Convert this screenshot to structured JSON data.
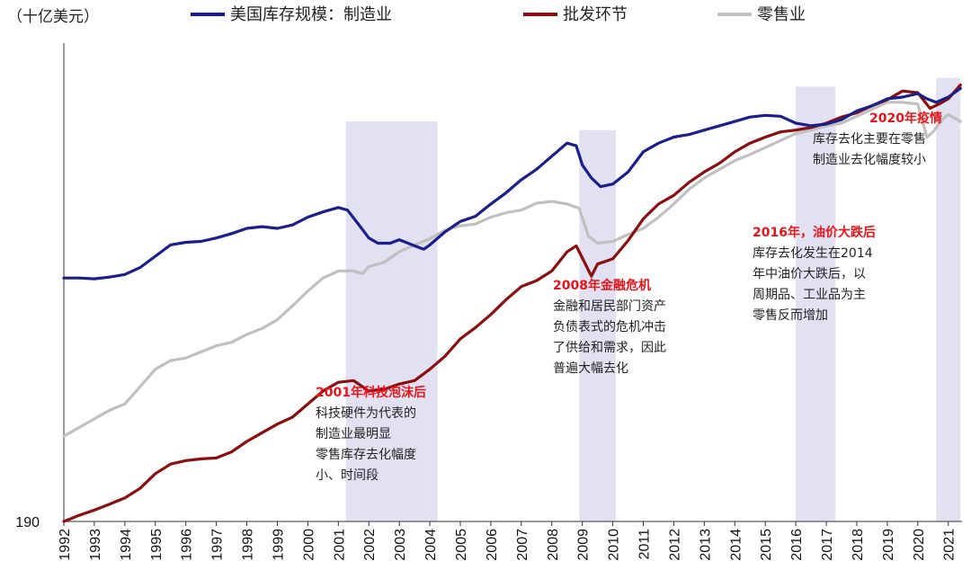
{
  "chart_data": {
    "type": "line",
    "unit_label": "（十亿美元）",
    "ylim": [
      190,
      740
    ],
    "y_ticks": [
      190
    ],
    "x_years": [
      1992,
      1993,
      1994,
      1995,
      1996,
      1997,
      1998,
      1999,
      2000,
      2001,
      2002,
      2003,
      2004,
      2005,
      2006,
      2007,
      2008,
      2009,
      2010,
      2011,
      2012,
      2013,
      2014,
      2015,
      2016,
      2017,
      2018,
      2019,
      2020,
      2021
    ],
    "x_tick_labels": [
      "1992",
      "1993",
      "1994",
      "1995",
      "1996",
      "1997",
      "1998",
      "1999",
      "2000",
      "2001",
      "2002",
      "2003",
      "2004",
      "2005",
      "2006",
      "2007",
      "2008",
      "2009",
      "2010",
      "2011",
      "2012",
      "2013",
      "2014",
      "2015",
      "2016",
      "2017",
      "2018",
      "2019",
      "2020",
      "2021"
    ],
    "series": [
      {
        "name": "美国库存规模：制造业",
        "color": "#1a1f8c",
        "points": [
          [
            1992.0,
            470
          ],
          [
            1992.5,
            470
          ],
          [
            1993.0,
            469
          ],
          [
            1993.5,
            471
          ],
          [
            1994.0,
            474
          ],
          [
            1994.5,
            482
          ],
          [
            1995.0,
            495
          ],
          [
            1995.5,
            508
          ],
          [
            1996.0,
            511
          ],
          [
            1996.5,
            512
          ],
          [
            1997.0,
            516
          ],
          [
            1997.5,
            521
          ],
          [
            1998.0,
            527
          ],
          [
            1998.5,
            529
          ],
          [
            1999.0,
            527
          ],
          [
            1999.5,
            531
          ],
          [
            2000.0,
            540
          ],
          [
            2000.5,
            546
          ],
          [
            2001.0,
            551
          ],
          [
            2001.3,
            548
          ],
          [
            2001.7,
            530
          ],
          [
            2002.0,
            516
          ],
          [
            2002.3,
            510
          ],
          [
            2002.7,
            510
          ],
          [
            2003.0,
            514
          ],
          [
            2003.5,
            507
          ],
          [
            2003.8,
            503
          ],
          [
            2004.0,
            508
          ],
          [
            2004.5,
            523
          ],
          [
            2005.0,
            535
          ],
          [
            2005.5,
            541
          ],
          [
            2006.0,
            555
          ],
          [
            2006.5,
            568
          ],
          [
            2007.0,
            583
          ],
          [
            2007.5,
            595
          ],
          [
            2008.0,
            610
          ],
          [
            2008.5,
            625
          ],
          [
            2008.8,
            622
          ],
          [
            2009.0,
            600
          ],
          [
            2009.3,
            585
          ],
          [
            2009.6,
            575
          ],
          [
            2010.0,
            578
          ],
          [
            2010.5,
            592
          ],
          [
            2011.0,
            615
          ],
          [
            2011.5,
            625
          ],
          [
            2012.0,
            632
          ],
          [
            2012.5,
            635
          ],
          [
            2013.0,
            640
          ],
          [
            2013.5,
            645
          ],
          [
            2014.0,
            650
          ],
          [
            2014.5,
            655
          ],
          [
            2015.0,
            657
          ],
          [
            2015.5,
            656
          ],
          [
            2016.0,
            648
          ],
          [
            2016.5,
            645
          ],
          [
            2017.0,
            647
          ],
          [
            2017.5,
            652
          ],
          [
            2018.0,
            662
          ],
          [
            2018.5,
            668
          ],
          [
            2019.0,
            676
          ],
          [
            2019.5,
            678
          ],
          [
            2020.0,
            682
          ],
          [
            2020.3,
            676
          ],
          [
            2020.6,
            672
          ],
          [
            2021.0,
            678
          ],
          [
            2021.4,
            688
          ]
        ]
      },
      {
        "name": "批发环节",
        "color": "#8b0e10",
        "points": [
          [
            1992.0,
            190
          ],
          [
            1992.5,
            197
          ],
          [
            1993.0,
            203
          ],
          [
            1993.5,
            210
          ],
          [
            1994.0,
            217
          ],
          [
            1994.5,
            228
          ],
          [
            1995.0,
            245
          ],
          [
            1995.5,
            256
          ],
          [
            1996.0,
            260
          ],
          [
            1996.5,
            262
          ],
          [
            1997.0,
            263
          ],
          [
            1997.5,
            270
          ],
          [
            1998.0,
            282
          ],
          [
            1998.5,
            292
          ],
          [
            1999.0,
            302
          ],
          [
            1999.5,
            310
          ],
          [
            2000.0,
            325
          ],
          [
            2000.5,
            340
          ],
          [
            2001.0,
            350
          ],
          [
            2001.5,
            352
          ],
          [
            2002.0,
            340
          ],
          [
            2002.5,
            342
          ],
          [
            2003.0,
            348
          ],
          [
            2003.5,
            352
          ],
          [
            2004.0,
            365
          ],
          [
            2004.5,
            380
          ],
          [
            2005.0,
            400
          ],
          [
            2005.5,
            413
          ],
          [
            2006.0,
            428
          ],
          [
            2006.5,
            445
          ],
          [
            2007.0,
            460
          ],
          [
            2007.5,
            467
          ],
          [
            2008.0,
            478
          ],
          [
            2008.5,
            500
          ],
          [
            2008.8,
            507
          ],
          [
            2009.0,
            493
          ],
          [
            2009.3,
            472
          ],
          [
            2009.5,
            486
          ],
          [
            2010.0,
            492
          ],
          [
            2010.5,
            513
          ],
          [
            2011.0,
            538
          ],
          [
            2011.5,
            555
          ],
          [
            2012.0,
            565
          ],
          [
            2012.5,
            580
          ],
          [
            2013.0,
            592
          ],
          [
            2013.5,
            602
          ],
          [
            2014.0,
            615
          ],
          [
            2014.5,
            625
          ],
          [
            2015.0,
            632
          ],
          [
            2015.5,
            638
          ],
          [
            2016.0,
            640
          ],
          [
            2016.5,
            643
          ],
          [
            2017.0,
            648
          ],
          [
            2017.5,
            655
          ],
          [
            2018.0,
            660
          ],
          [
            2018.5,
            668
          ],
          [
            2019.0,
            675
          ],
          [
            2019.5,
            685
          ],
          [
            2020.0,
            683
          ],
          [
            2020.4,
            665
          ],
          [
            2020.7,
            670
          ],
          [
            2021.0,
            676
          ],
          [
            2021.4,
            692
          ]
        ]
      },
      {
        "name": "零售业",
        "color": "#c0c0c0",
        "points": [
          [
            1992.0,
            288
          ],
          [
            1992.5,
            298
          ],
          [
            1993.0,
            308
          ],
          [
            1993.5,
            318
          ],
          [
            1994.0,
            325
          ],
          [
            1994.5,
            345
          ],
          [
            1995.0,
            365
          ],
          [
            1995.5,
            375
          ],
          [
            1996.0,
            378
          ],
          [
            1996.5,
            385
          ],
          [
            1997.0,
            392
          ],
          [
            1997.5,
            396
          ],
          [
            1998.0,
            405
          ],
          [
            1998.5,
            412
          ],
          [
            1999.0,
            422
          ],
          [
            1999.5,
            438
          ],
          [
            2000.0,
            455
          ],
          [
            2000.5,
            470
          ],
          [
            2001.0,
            478
          ],
          [
            2001.5,
            478
          ],
          [
            2001.8,
            475
          ],
          [
            2002.0,
            483
          ],
          [
            2002.5,
            488
          ],
          [
            2003.0,
            500
          ],
          [
            2003.5,
            508
          ],
          [
            2004.0,
            515
          ],
          [
            2004.5,
            525
          ],
          [
            2005.0,
            530
          ],
          [
            2005.5,
            532
          ],
          [
            2006.0,
            540
          ],
          [
            2006.5,
            545
          ],
          [
            2007.0,
            548
          ],
          [
            2007.5,
            556
          ],
          [
            2008.0,
            558
          ],
          [
            2008.5,
            555
          ],
          [
            2008.9,
            550
          ],
          [
            2009.2,
            518
          ],
          [
            2009.5,
            510
          ],
          [
            2010.0,
            512
          ],
          [
            2010.5,
            520
          ],
          [
            2011.0,
            527
          ],
          [
            2011.5,
            540
          ],
          [
            2012.0,
            555
          ],
          [
            2012.5,
            572
          ],
          [
            2013.0,
            585
          ],
          [
            2013.5,
            595
          ],
          [
            2014.0,
            605
          ],
          [
            2014.5,
            612
          ],
          [
            2015.0,
            620
          ],
          [
            2015.5,
            628
          ],
          [
            2016.0,
            636
          ],
          [
            2016.5,
            640
          ],
          [
            2017.0,
            645
          ],
          [
            2017.5,
            648
          ],
          [
            2018.0,
            656
          ],
          [
            2018.5,
            664
          ],
          [
            2019.0,
            672
          ],
          [
            2019.5,
            672
          ],
          [
            2020.0,
            670
          ],
          [
            2020.3,
            632
          ],
          [
            2020.5,
            638
          ],
          [
            2020.8,
            652
          ],
          [
            2021.0,
            658
          ],
          [
            2021.4,
            650
          ]
        ]
      }
    ],
    "shaded_periods": [
      {
        "id": "dotcom",
        "start": 2001.25,
        "end": 2004.25,
        "y_top": 650
      },
      {
        "id": "gfc",
        "start": 2008.9,
        "end": 2010.1,
        "y_top": 640
      },
      {
        "id": "oil",
        "start": 2016.0,
        "end": 2017.3,
        "y_top": 690
      },
      {
        "id": "covid",
        "start": 2020.6,
        "end": 2021.4,
        "y_top": 700
      }
    ],
    "annotations": [
      {
        "id": "dotcom",
        "title": "2001年科技泡沫后",
        "lines": [
          "科技硬件为代表的",
          "制造业最明显",
          "零售库存去化幅度",
          "小、时间段"
        ]
      },
      {
        "id": "gfc",
        "title": "2008年金融危机",
        "lines": [
          "金融和居民部门资产",
          "负债表式的危机冲击",
          "了供给和需求，因此",
          "普遍大幅去化"
        ]
      },
      {
        "id": "oil",
        "title": "2016年，油价大跌后",
        "lines": [
          "库存去化发生在2014",
          "年中油价大跌后，以",
          "周期品、工业品为主",
          "零售反而增加"
        ]
      },
      {
        "id": "covid",
        "title": "2020年疫情",
        "lines": [
          "库存去化主要在零售",
          "制造业去化幅度较小"
        ]
      }
    ],
    "annotation_title_color": "#e8141a"
  }
}
